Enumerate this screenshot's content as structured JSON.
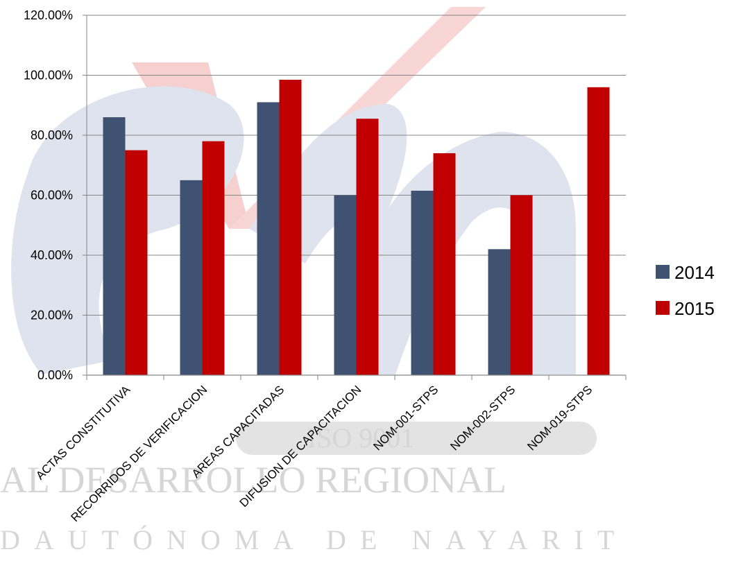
{
  "colors": {
    "series_2014": "#3f5272",
    "series_2015": "#c00000",
    "grid": "#868686",
    "watermark_blue": "#dfe3ee",
    "watermark_red": "#f6cfcf"
  },
  "watermark": {
    "badge": "ISO 9001",
    "line1": "AL DESARROLLO REGIONAL",
    "line2": "DAUTÓNOMA DE NAYARIT"
  },
  "chart_data": {
    "type": "bar",
    "categories": [
      "ACTAS CONSTITUTIVA",
      "RECORRIDOS DE VERIFICACION",
      "AREAS CAPACITADAS",
      "DIFUSION DE CAPACITACION",
      "NOM-001-STPS",
      "NOM-002-STPS",
      "NOM-019-STPS"
    ],
    "series": [
      {
        "name": "2014",
        "values": [
          0.86,
          0.65,
          0.91,
          0.6,
          0.615,
          0.42,
          null
        ]
      },
      {
        "name": "2015",
        "values": [
          0.75,
          0.78,
          0.985,
          0.855,
          0.74,
          0.6,
          0.96
        ]
      }
    ],
    "ylim": [
      0,
      1.2
    ],
    "yticks": [
      "0.00%",
      "20.00%",
      "40.00%",
      "60.00%",
      "80.00%",
      "100.00%",
      "120.00%"
    ],
    "ytick_values": [
      0,
      0.2,
      0.4,
      0.6,
      0.8,
      1.0,
      1.2
    ],
    "grid": true,
    "legend": "right",
    "title": "",
    "xlabel": "",
    "ylabel": ""
  }
}
